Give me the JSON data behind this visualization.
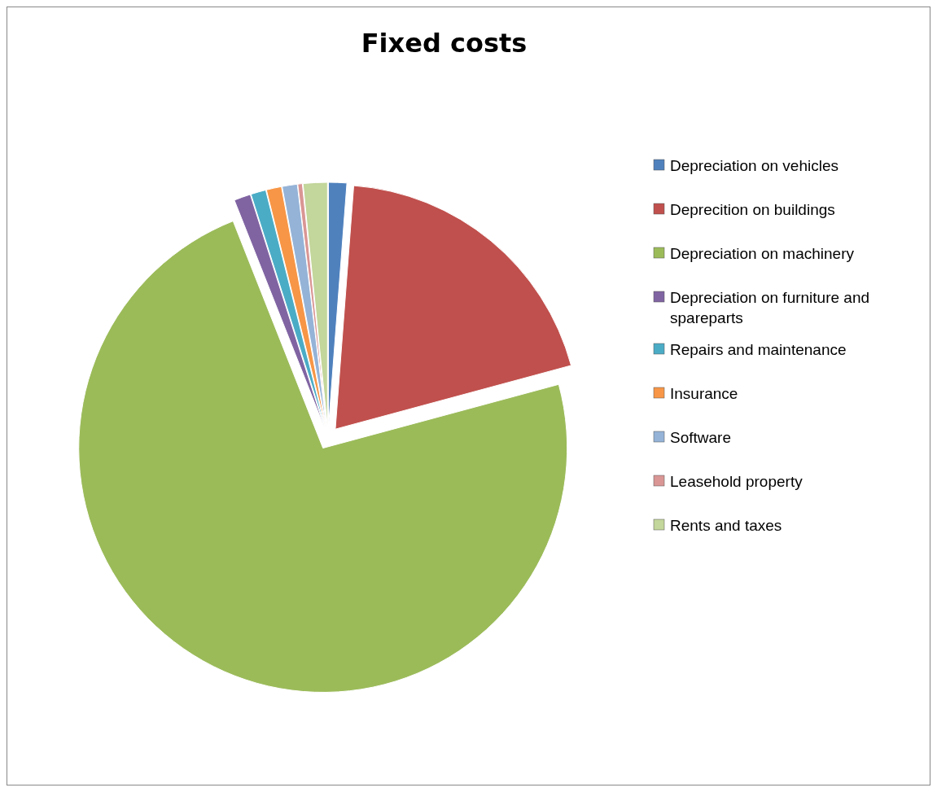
{
  "chart_data": {
    "type": "pie",
    "title": "Fixed costs",
    "categories": [
      "Depreciation on vehicles",
      "Deprecition on buildings",
      "Depreciation on machinery",
      "Depreciation on furniture and spareparts",
      "Repairs and maintenance",
      "Insurance",
      "Software",
      "Leasehold property",
      "Rents and taxes"
    ],
    "values": [
      1.2,
      19.6,
      73.2,
      1.1,
      1.0,
      1.0,
      1.0,
      0.3,
      1.6
    ],
    "colors": [
      "#4f81bd",
      "#c0504d",
      "#9bbb59",
      "#8064a2",
      "#4bacc6",
      "#f79646",
      "#95b3d7",
      "#d99694",
      "#c3d69b"
    ],
    "legend": "right"
  }
}
